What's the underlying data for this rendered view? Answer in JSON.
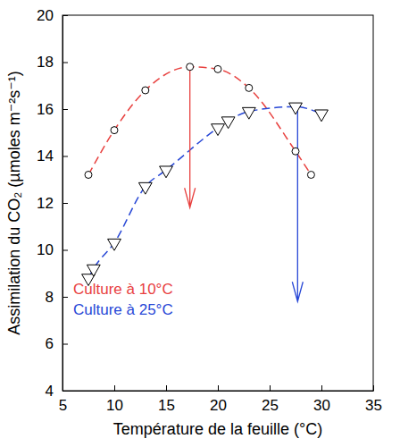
{
  "chart_data": {
    "type": "line",
    "x_label": "Température de la feuille (°C)",
    "y_label": "Assimilation du CO₂ (µmoles m⁻²s⁻¹)",
    "xlim": [
      5,
      35
    ],
    "xticks": [
      5,
      10,
      15,
      20,
      25,
      30,
      35
    ],
    "ylim": [
      4,
      20
    ],
    "yticks": [
      4,
      6,
      8,
      10,
      12,
      14,
      16,
      18,
      20
    ],
    "legend": "lower left",
    "series": [
      {
        "name": "Culture à 10°C",
        "color": "#e8413f",
        "marker": "circle",
        "line_style": "dashed",
        "x": [
          7.5,
          10,
          13,
          17.3,
          20,
          23,
          27.5,
          29
        ],
        "values": [
          13.2,
          15.1,
          16.8,
          17.8,
          17.7,
          16.9,
          14.2,
          13.2
        ]
      },
      {
        "name": "Culture à 25°C",
        "color": "#2747d6",
        "marker": "triangle-down",
        "line_style": "dashed",
        "x": [
          7.5,
          8,
          10,
          13,
          15,
          20,
          21,
          23,
          27.5,
          30
        ],
        "values": [
          8.8,
          9.2,
          10.3,
          12.7,
          13.4,
          15.2,
          15.5,
          15.9,
          16.1,
          15.8
        ]
      }
    ],
    "arrows": [
      {
        "x": 17.3,
        "y": [
          17.8,
          11.8
        ],
        "color": "#e8413f"
      },
      {
        "x": 27.7,
        "y": [
          16.1,
          7.8
        ],
        "color": "#2747d6"
      }
    ]
  }
}
